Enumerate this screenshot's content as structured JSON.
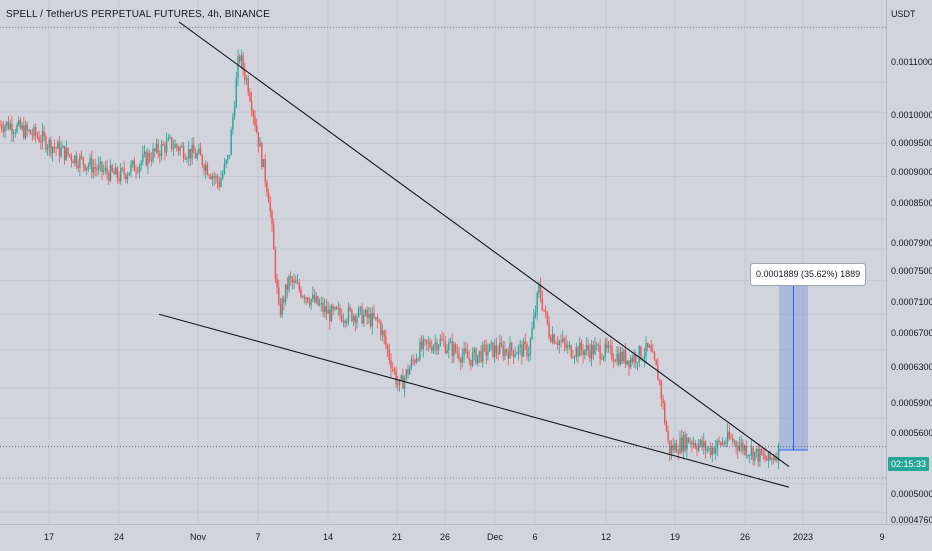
{
  "header": {
    "title": "SPELL / TetherUS PERPETUAL FUTURES, 4h, BINANCE"
  },
  "price_axis": {
    "currency": "USDT",
    "ticks": [
      "0.0011000",
      "0.0010000",
      "0.0009500",
      "0.0009000",
      "0.0008500",
      "0.0007900",
      "0.0007500",
      "0.0007100",
      "0.0006700",
      "0.0006300",
      "0.0005900",
      "0.0005600",
      "0.0005000",
      "0.0004760"
    ],
    "current_price_countdown": "02:15:33"
  },
  "time_axis": {
    "ticks": [
      "17",
      "24",
      "Nov",
      "7",
      "14",
      "21",
      "26",
      "Dec",
      "6",
      "12",
      "19",
      "26",
      "2023",
      "9"
    ]
  },
  "measure_tool": {
    "label": "0.0001889 (35.62%) 1889"
  },
  "colors": {
    "up": "#26a69a",
    "down": "#ef5350",
    "background": "#d1d4dc",
    "trendline": "#131722",
    "measure": "#2962ff",
    "measure_fill": "#7f9bd6"
  },
  "chart_data": {
    "type": "candlestick",
    "symbol": "SPELL / TetherUS PERPETUAL FUTURES",
    "interval": "4h",
    "exchange": "BINANCE",
    "y_unit": "USDT",
    "log_scale": true,
    "ylim": [
      0.000468,
      0.001145
    ],
    "x_ticks": [
      "17",
      "24",
      "Nov",
      "7",
      "14",
      "21",
      "26",
      "Dec",
      "6",
      "12",
      "19",
      "26",
      "2023",
      "9"
    ],
    "y_ticks": [
      0.0011,
      0.001,
      0.00095,
      0.0009,
      0.00085,
      0.00079,
      0.00075,
      0.00071,
      0.00067,
      0.00063,
      0.00059,
      0.00056,
      0.0005,
      0.000476
    ],
    "close_path": [
      {
        "x": "Oct 13",
        "y": 0.00093
      },
      {
        "x": "Oct 16",
        "y": 0.00091
      },
      {
        "x": "Oct 18",
        "y": 0.00089
      },
      {
        "x": "Oct 22",
        "y": 0.00086
      },
      {
        "x": "Oct 24",
        "y": 0.00085
      },
      {
        "x": "Oct 27",
        "y": 0.00088
      },
      {
        "x": "Oct 29",
        "y": 0.0009
      },
      {
        "x": "Nov 1",
        "y": 0.00088
      },
      {
        "x": "Nov 3",
        "y": 0.00084
      },
      {
        "x": "Nov 4",
        "y": 0.00088
      },
      {
        "x": "Nov 5",
        "y": 0.00105
      },
      {
        "x": "Nov 6",
        "y": 0.00099
      },
      {
        "x": "Nov 7",
        "y": 0.0009
      },
      {
        "x": "Nov 8",
        "y": 0.00082
      },
      {
        "x": "Nov 9",
        "y": 0.00067
      },
      {
        "x": "Nov 10",
        "y": 0.00071
      },
      {
        "x": "Nov 12",
        "y": 0.00069
      },
      {
        "x": "Nov 14",
        "y": 0.00067
      },
      {
        "x": "Nov 17",
        "y": 0.00067
      },
      {
        "x": "Nov 19",
        "y": 0.00066
      },
      {
        "x": "Nov 21",
        "y": 0.00059
      },
      {
        "x": "Nov 23",
        "y": 0.00063
      },
      {
        "x": "Nov 25",
        "y": 0.00064
      },
      {
        "x": "Nov 28",
        "y": 0.00062
      },
      {
        "x": "Nov 30",
        "y": 0.00063
      },
      {
        "x": "Dec 2",
        "y": 0.00063
      },
      {
        "x": "Dec 4",
        "y": 0.00063
      },
      {
        "x": "Dec 5",
        "y": 0.0007
      },
      {
        "x": "Dec 6",
        "y": 0.00065
      },
      {
        "x": "Dec 8",
        "y": 0.00063
      },
      {
        "x": "Dec 11",
        "y": 0.00063
      },
      {
        "x": "Dec 14",
        "y": 0.00062
      },
      {
        "x": "Dec 16",
        "y": 0.00063
      },
      {
        "x": "Dec 17",
        "y": 0.0006
      },
      {
        "x": "Dec 18",
        "y": 0.00053
      },
      {
        "x": "Dec 20",
        "y": 0.00054
      },
      {
        "x": "Dec 22",
        "y": 0.00053
      },
      {
        "x": "Dec 24",
        "y": 0.00054
      },
      {
        "x": "Dec 26",
        "y": 0.00053
      },
      {
        "x": "Dec 28",
        "y": 0.00052
      },
      {
        "x": "Dec 29",
        "y": 0.00053
      }
    ],
    "trendlines": [
      {
        "name": "upper",
        "from": {
          "x": "Oct 30",
          "y": 0.00111
        },
        "to": {
          "x": "Dec 30",
          "y": 0.000515
        }
      },
      {
        "name": "lower",
        "from": {
          "x": "Oct 28",
          "y": 0.00067
        },
        "to": {
          "x": "Dec 30",
          "y": 0.000497
        }
      }
    ],
    "measure": {
      "from_price": 0.00053,
      "to_price": 0.000719,
      "change": "0.0001889",
      "percent": "35.62%",
      "ticks": 1889
    },
    "last_price": 0.000533,
    "grid": true
  }
}
